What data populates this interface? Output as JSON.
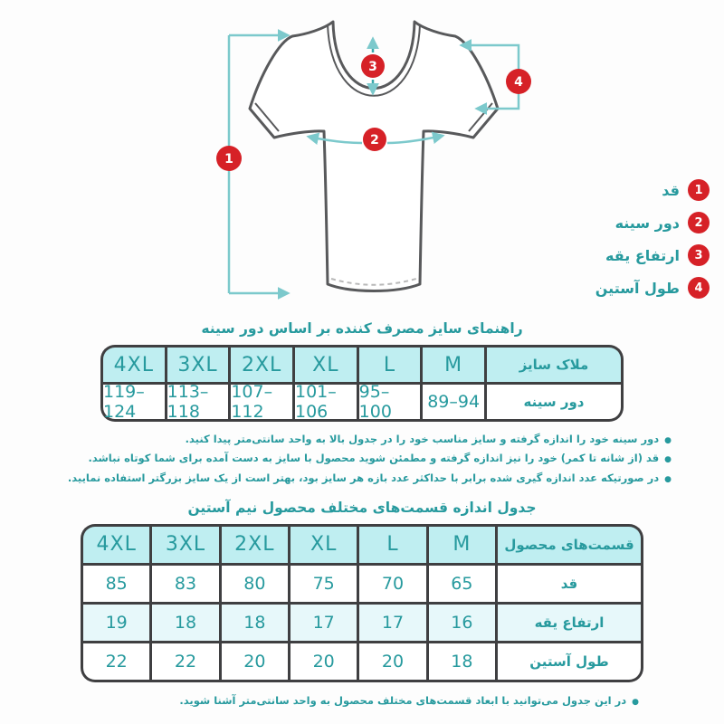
{
  "colors": {
    "teal_text": "#279a9e",
    "table_border": "#3f3f41",
    "header_bg": "#bfeef1",
    "alt_row_bg": "#e7f8fa",
    "marker_red": "#d62127",
    "measure_line_teal": "#7cc9cc",
    "shirt_outline": "#58595b"
  },
  "legend": {
    "items": [
      {
        "num": "1",
        "label": "قد"
      },
      {
        "num": "2",
        "label": "دور سینه"
      },
      {
        "num": "3",
        "label": "ارتفاع یقه"
      },
      {
        "num": "4",
        "label": "طول آستین"
      }
    ]
  },
  "size_guide": {
    "title": "راهنمای سایز مصرف کننده بر اساس دور سینه",
    "header_label": "ملاک سایز",
    "sizes": [
      "4XL",
      "3XL",
      "2XL",
      "XL",
      "L",
      "M"
    ],
    "row_label": "دور سینه",
    "values": [
      "119–124",
      "113–118",
      "107–112",
      "101–106",
      "95–100",
      "89–94"
    ]
  },
  "notes": [
    "دور سینه خود را اندازه گرفته و سایز مناسب خود را در جدول بالا به واحد سانتی‌متر پیدا کنید.",
    "قد (از شانه تا کمر) خود را نیز اندازه گرفته و مطمئن شوید محصول با سایز به دست آمده برای شما کوتاه نباشد.",
    "در صورتیکه عدد اندازه گیری شده برابر با حداکثر عدد بازه هر سایز بود، بهتر است از یک سایز بزرگتر استفاده نمایید."
  ],
  "parts_table": {
    "title": "جدول اندازه قسمت‌های مختلف محصول نیم آستین",
    "header_label": "قسمت‌های محصول",
    "sizes": [
      "4XL",
      "3XL",
      "2XL",
      "XL",
      "L",
      "M"
    ],
    "rows": [
      {
        "label": "قد",
        "values": [
          "85",
          "83",
          "80",
          "75",
          "70",
          "65"
        ]
      },
      {
        "label": "ارتفاع یقه",
        "values": [
          "19",
          "18",
          "18",
          "17",
          "17",
          "16"
        ]
      },
      {
        "label": "طول آستین",
        "values": [
          "22",
          "22",
          "20",
          "20",
          "20",
          "18"
        ]
      }
    ]
  },
  "footer_note": "در این جدول می‌توانید با ابعاد قسمت‌های مختلف محصول به واحد سانتی‌متر آشنا شوید."
}
